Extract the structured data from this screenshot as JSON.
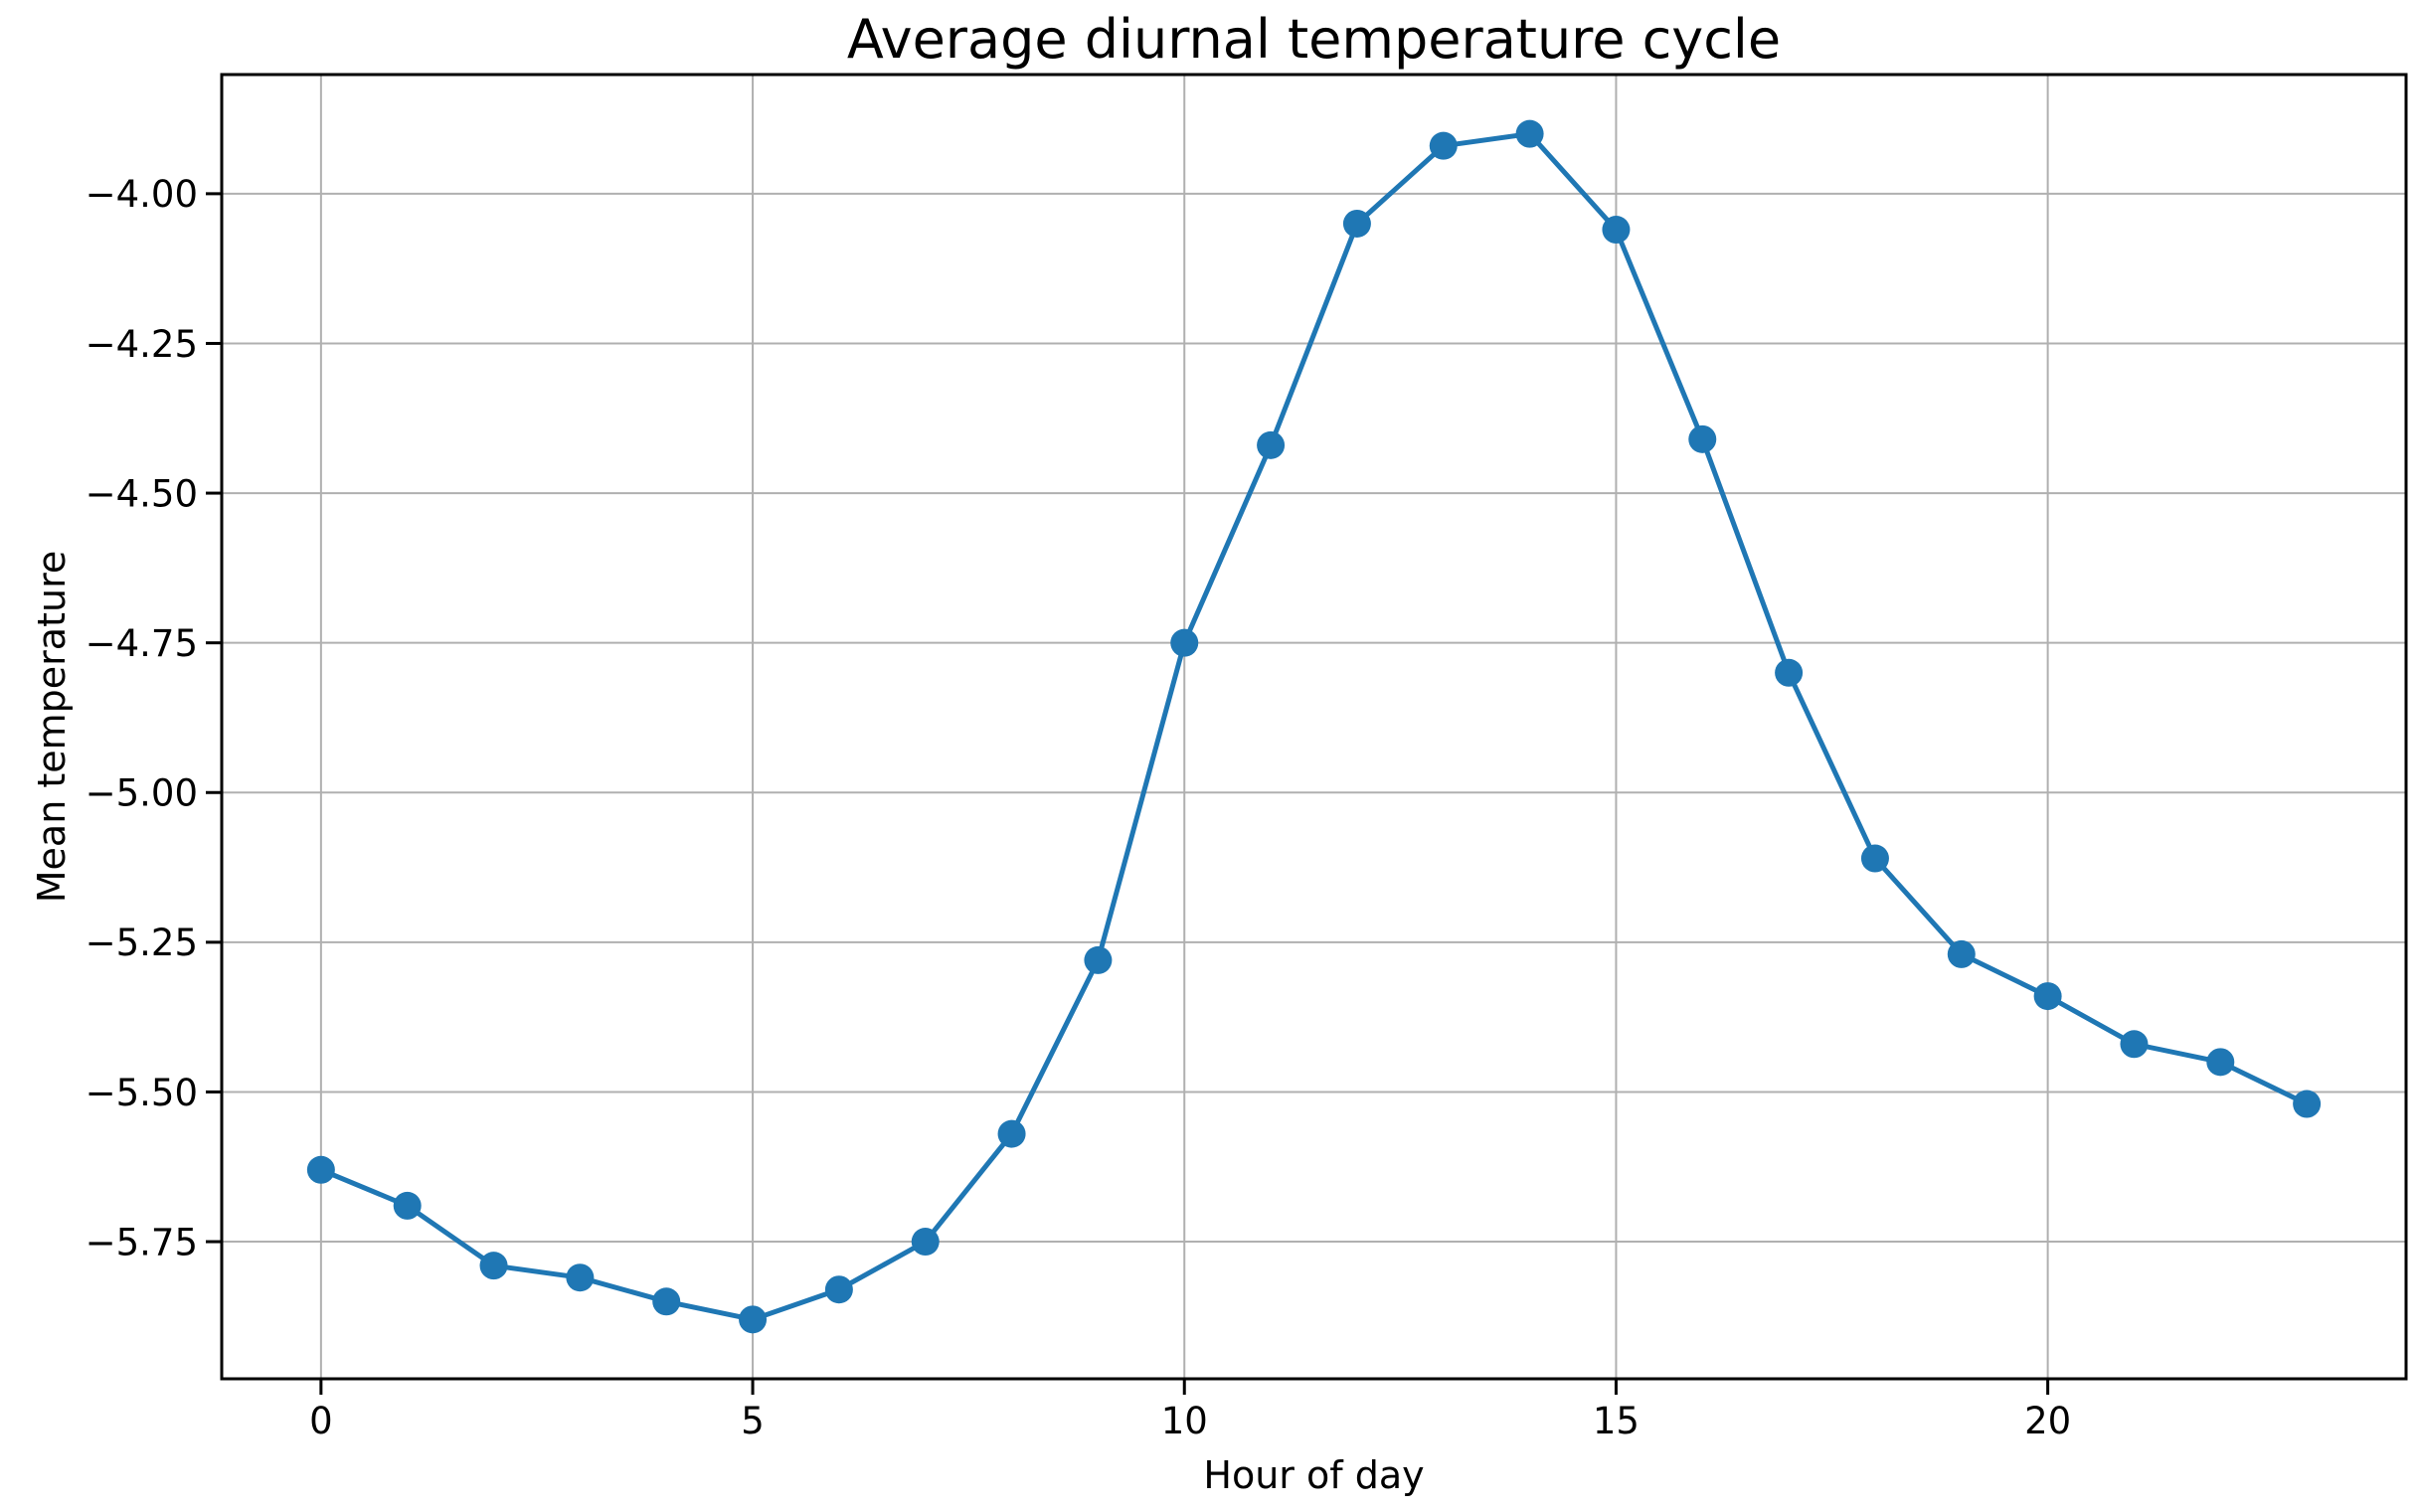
{
  "chart_data": {
    "type": "line",
    "title": "Average diurnal temperature cycle",
    "xlabel": "Hour of day",
    "ylabel": "Mean temperature",
    "series": [
      {
        "name": "mean temperature",
        "x": [
          0,
          1,
          2,
          3,
          4,
          5,
          6,
          7,
          8,
          9,
          10,
          11,
          12,
          13,
          14,
          15,
          16,
          17,
          18,
          19,
          20,
          21,
          22,
          23
        ],
        "y": [
          -5.63,
          -5.69,
          -5.79,
          -5.81,
          -5.85,
          -5.88,
          -5.83,
          -5.75,
          -5.57,
          -5.28,
          -4.75,
          -4.42,
          -4.05,
          -3.92,
          -3.9,
          -4.06,
          -4.41,
          -4.8,
          -5.11,
          -5.27,
          -5.34,
          -5.42,
          -5.45,
          -5.52
        ]
      }
    ],
    "xlim": [
      -1.15,
      24.15
    ],
    "ylim": [
      -5.979,
      -3.801
    ],
    "xticks": [
      0,
      5,
      10,
      15,
      20
    ],
    "xtick_labels": [
      "0",
      "5",
      "10",
      "15",
      "20"
    ],
    "yticks": [
      -4.0,
      -4.25,
      -4.5,
      -4.75,
      -5.0,
      -5.25,
      -5.5,
      -5.75
    ],
    "ytick_labels": [
      "−4.00",
      "−4.25",
      "−4.50",
      "−4.75",
      "−5.00",
      "−5.25",
      "−5.50",
      "−5.75"
    ],
    "grid": true,
    "legend": null,
    "marker": "o",
    "colors": {
      "line": "#1f77b4",
      "marker": "#1f77b4",
      "grid": "#b0b0b0",
      "axis": "#000000",
      "text": "#000000",
      "background": "#ffffff"
    }
  }
}
